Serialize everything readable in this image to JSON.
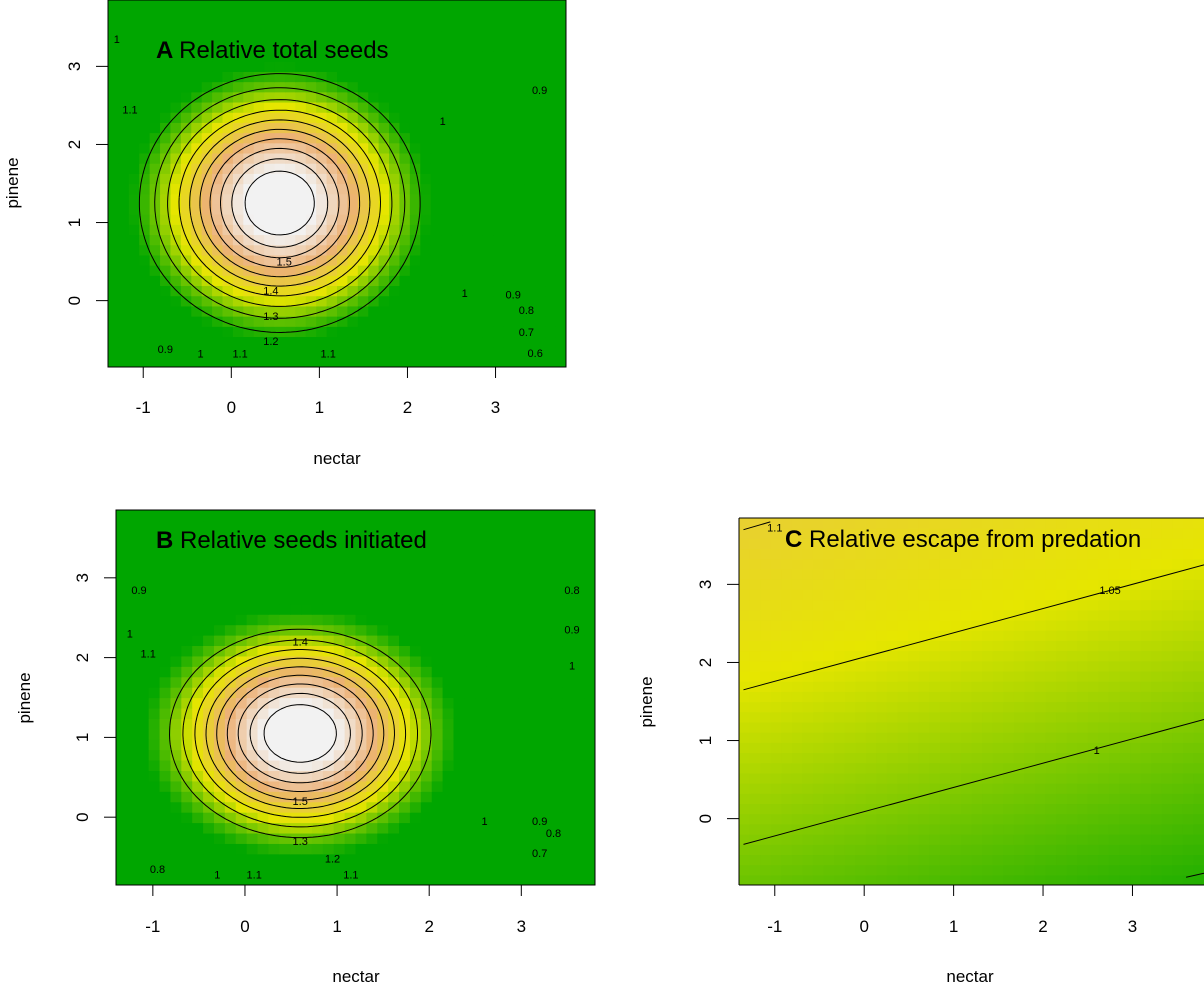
{
  "chart_data": [
    {
      "type": "heatmap",
      "panel_letter": "A",
      "title": "Relative total seeds",
      "xlabel": "nectar",
      "ylabel": "pinene",
      "xlim": [
        -1.4,
        3.8
      ],
      "ylim": [
        -0.85,
        3.85
      ],
      "xticks": [
        -1,
        0,
        1,
        2,
        3
      ],
      "yticks": [
        0,
        1,
        2,
        3
      ],
      "colormap": [
        "#00a600",
        "#e6e600",
        "#ecb176",
        "#f2f2f2"
      ],
      "surface": {
        "peak": [
          0.55,
          1.25
        ],
        "peak_value": 1.62,
        "sx": 1.25,
        "sy": 1.3,
        "tilt": 0.12,
        "tilt_axis": "y",
        "floor": 0.35
      },
      "contour_levels": [
        0.6,
        0.7,
        0.8,
        0.9,
        1,
        1.1,
        1.2,
        1.3,
        1.4,
        1.5
      ],
      "contour_labels": [
        {
          "text": "1.5",
          "x": 0.6,
          "y": 0.5
        },
        {
          "text": "1.4",
          "x": 0.45,
          "y": 0.13
        },
        {
          "text": "1.3",
          "x": 0.45,
          "y": -0.2
        },
        {
          "text": "1.2",
          "x": 0.45,
          "y": -0.52
        },
        {
          "text": "1.1",
          "x": 0.1,
          "y": -0.68
        },
        {
          "text": "1.1",
          "x": 1.1,
          "y": -0.68
        },
        {
          "text": "1",
          "x": -0.35,
          "y": -0.68
        },
        {
          "text": "0.9",
          "x": -0.75,
          "y": -0.62
        },
        {
          "text": "1",
          "x": 2.65,
          "y": 0.1
        },
        {
          "text": "0.9",
          "x": 3.2,
          "y": 0.08
        },
        {
          "text": "0.8",
          "x": 3.35,
          "y": -0.12
        },
        {
          "text": "0.7",
          "x": 3.35,
          "y": -0.4
        },
        {
          "text": "0.6",
          "x": 3.45,
          "y": -0.67
        },
        {
          "text": "1.1",
          "x": -1.15,
          "y": 2.45
        },
        {
          "text": "1",
          "x": -1.3,
          "y": 3.35
        },
        {
          "text": "1",
          "x": 2.4,
          "y": 2.3
        },
        {
          "text": "0.9",
          "x": 3.5,
          "y": 2.7
        }
      ]
    },
    {
      "type": "heatmap",
      "panel_letter": "B",
      "title": "Relative seeds initiated",
      "xlabel": "nectar",
      "ylabel": "pinene",
      "xlim": [
        -1.4,
        3.8
      ],
      "ylim": [
        -0.85,
        3.85
      ],
      "xticks": [
        -1,
        0,
        1,
        2,
        3
      ],
      "yticks": [
        0,
        1,
        2,
        3
      ],
      "colormap": [
        "#00a600",
        "#e6e600",
        "#ecb176",
        "#f2f2f2"
      ],
      "surface": {
        "peak": [
          0.6,
          1.05
        ],
        "peak_value": 1.62,
        "sx": 1.25,
        "sy": 1.15,
        "tilt": 0.12,
        "tilt_axis": "y",
        "floor": 0.35
      },
      "contour_levels": [
        0.7,
        0.8,
        0.9,
        1,
        1.1,
        1.2,
        1.3,
        1.4,
        1.5
      ],
      "contour_labels": [
        {
          "text": "1.4",
          "x": 0.6,
          "y": 2.2
        },
        {
          "text": "1.5",
          "x": 0.6,
          "y": 0.2
        },
        {
          "text": "1.3",
          "x": 0.6,
          "y": -0.3
        },
        {
          "text": "1.2",
          "x": 0.95,
          "y": -0.52
        },
        {
          "text": "1.1",
          "x": 0.1,
          "y": -0.72
        },
        {
          "text": "1.1",
          "x": 1.15,
          "y": -0.72
        },
        {
          "text": "1",
          "x": -0.3,
          "y": -0.72
        },
        {
          "text": "0.8",
          "x": -0.95,
          "y": -0.65
        },
        {
          "text": "0.9",
          "x": -1.15,
          "y": 2.85
        },
        {
          "text": "1",
          "x": -1.25,
          "y": 2.3
        },
        {
          "text": "1.1",
          "x": -1.05,
          "y": 2.05
        },
        {
          "text": "0.8",
          "x": 3.55,
          "y": 2.85
        },
        {
          "text": "0.9",
          "x": 3.55,
          "y": 2.35
        },
        {
          "text": "1",
          "x": 3.55,
          "y": 1.9
        },
        {
          "text": "1",
          "x": 2.6,
          "y": -0.05
        },
        {
          "text": "0.9",
          "x": 3.2,
          "y": -0.05
        },
        {
          "text": "0.8",
          "x": 3.35,
          "y": -0.2
        },
        {
          "text": "0.7",
          "x": 3.2,
          "y": -0.45
        }
      ]
    },
    {
      "type": "heatmap",
      "panel_letter": "C",
      "title": "Relative escape from predation",
      "xlabel": "nectar",
      "ylabel": "pinene",
      "xlim": [
        -1.4,
        3.8
      ],
      "ylim": [
        -0.85,
        3.85
      ],
      "xticks": [
        -1,
        0,
        1,
        2,
        3
      ],
      "yticks": [
        0,
        1,
        2,
        3
      ],
      "colormap": [
        "#00a600",
        "#e6e600",
        "#ecb176",
        "#f2f2f2"
      ],
      "contour_lines": [
        {
          "level": "1.1",
          "points": [
            [
              -1.35,
              3.7
            ],
            [
              -1.05,
              3.8
            ]
          ]
        },
        {
          "level": "1.05",
          "points": [
            [
              -1.35,
              1.65
            ],
            [
              3.8,
              3.25
            ]
          ]
        },
        {
          "level": "1",
          "points": [
            [
              -1.35,
              -0.33
            ],
            [
              3.8,
              1.27
            ]
          ]
        },
        {
          "level": "0.95",
          "points": [
            [
              3.6,
              -0.75
            ],
            [
              3.8,
              -0.7
            ]
          ]
        }
      ],
      "contour_labels": [
        {
          "text": "1.1",
          "x": -1.0,
          "y": 3.73
        },
        {
          "text": "1.05",
          "x": 2.75,
          "y": 2.93
        },
        {
          "text": "1",
          "x": 2.6,
          "y": 0.88
        }
      ]
    }
  ]
}
